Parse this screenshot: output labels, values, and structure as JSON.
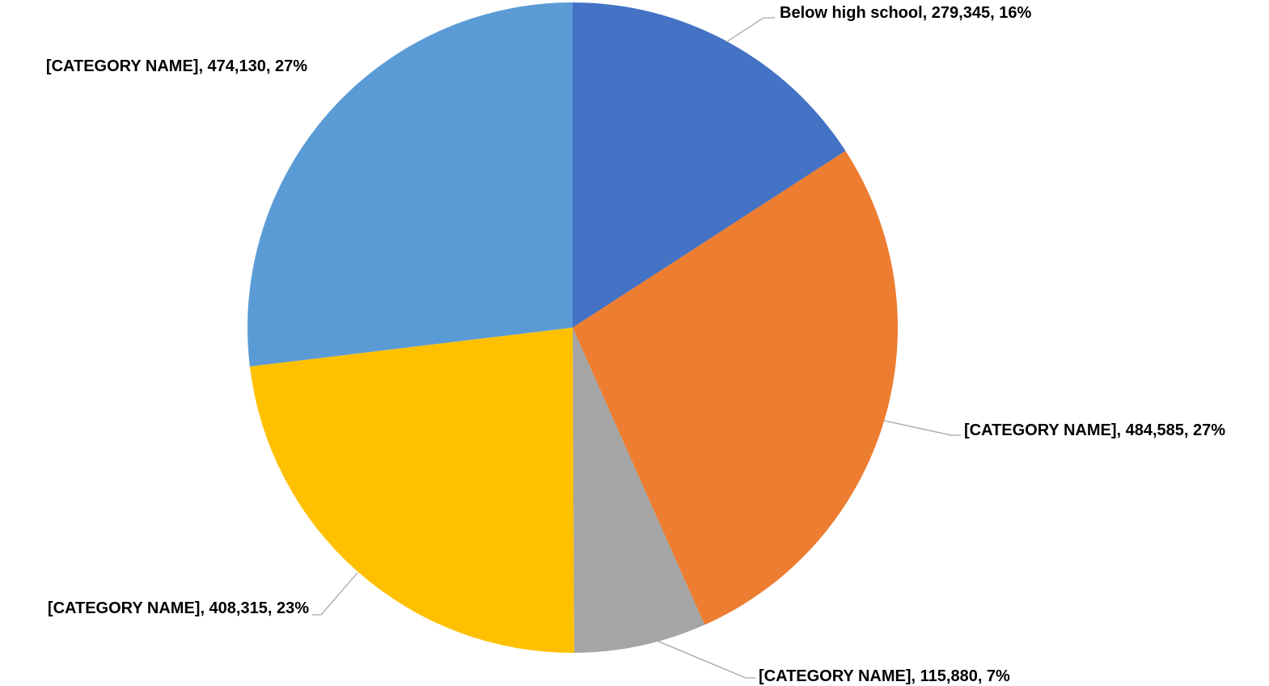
{
  "chart_data": {
    "type": "pie",
    "title": "",
    "slices": [
      {
        "label": "Below high school",
        "value": 279345,
        "value_text": "279,345",
        "percent_text": "16%",
        "color": "#4472C4"
      },
      {
        "label": "[CATEGORY NAME]",
        "value": 484585,
        "value_text": "484,585",
        "percent_text": "27%",
        "color": "#ED7D31"
      },
      {
        "label": "[CATEGORY NAME]",
        "value": 115880,
        "value_text": "115,880",
        "percent_text": "7%",
        "color": "#A5A5A5"
      },
      {
        "label": "[CATEGORY NAME]",
        "value": 408315,
        "value_text": "408,315",
        "percent_text": "23%",
        "color": "#FFC000"
      },
      {
        "label": "[CATEGORY NAME]",
        "value": 474130,
        "value_text": "474,130",
        "percent_text": "27%",
        "color": "#5B9BD5"
      }
    ],
    "legend": "none",
    "data_labels": "outside with leader lines"
  }
}
